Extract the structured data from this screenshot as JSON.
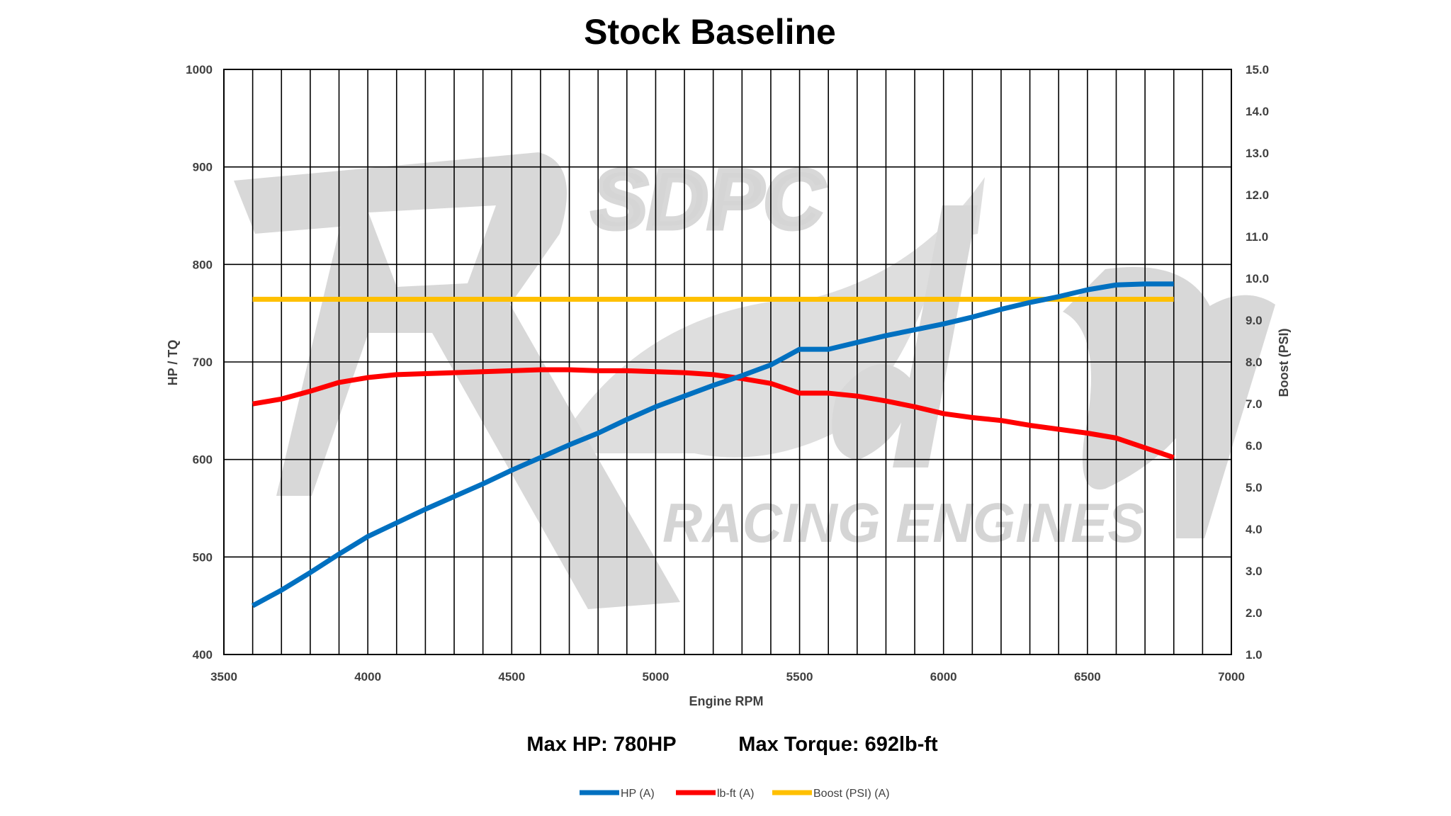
{
  "chart_data": {
    "type": "line",
    "title": "Stock Baseline",
    "xlabel": "Engine RPM",
    "ylabel": "HP / TQ",
    "y2label": "Boost (PSI)",
    "xlim": [
      3500,
      7000
    ],
    "ylim": [
      400,
      1000
    ],
    "y2lim": [
      1.0,
      15.0
    ],
    "x_ticks": [
      3500,
      4000,
      4500,
      5000,
      5500,
      6000,
      6500,
      7000
    ],
    "x_tick_labels": [
      "3500",
      "4000",
      "4500",
      "5000",
      "5500",
      "6000",
      "6500",
      "7000"
    ],
    "y_ticks": [
      400,
      500,
      600,
      700,
      800,
      900,
      1000
    ],
    "y_tick_labels": [
      "400",
      "500",
      "600",
      "700",
      "800",
      "900",
      "1000"
    ],
    "y2_ticks": [
      1.0,
      2.0,
      3.0,
      4.0,
      5.0,
      6.0,
      7.0,
      8.0,
      9.0,
      10.0,
      11.0,
      12.0,
      13.0,
      14.0,
      15.0
    ],
    "y2_tick_labels": [
      "1.0",
      "2.0",
      "3.0",
      "4.0",
      "5.0",
      "6.0",
      "7.0",
      "8.0",
      "9.0",
      "10.0",
      "11.0",
      "12.0",
      "13.0",
      "14.0",
      "15.0"
    ],
    "grid": true,
    "x_minor_step": 100,
    "series": [
      {
        "name": "HP (A)",
        "axis": "left",
        "color": "#0070c0",
        "x": [
          3600,
          3700,
          3800,
          3900,
          4000,
          4100,
          4200,
          4300,
          4400,
          4500,
          4600,
          4700,
          4800,
          4900,
          5000,
          5100,
          5200,
          5300,
          5400,
          5500,
          5600,
          5700,
          5800,
          5900,
          6000,
          6100,
          6200,
          6300,
          6400,
          6500,
          6600,
          6700,
          6800
        ],
        "values": [
          450,
          466,
          484,
          503,
          521,
          535,
          549,
          562,
          575,
          589,
          602,
          615,
          627,
          641,
          654,
          665,
          676,
          686,
          697,
          713,
          713,
          720,
          727,
          733,
          739,
          746,
          754,
          761,
          767,
          774,
          779,
          780,
          780
        ]
      },
      {
        "name": "lb-ft (A)",
        "axis": "left",
        "color": "#ff0000",
        "x": [
          3600,
          3700,
          3800,
          3900,
          4000,
          4100,
          4200,
          4300,
          4400,
          4500,
          4600,
          4700,
          4800,
          4900,
          5000,
          5100,
          5200,
          5300,
          5400,
          5500,
          5600,
          5700,
          5800,
          5900,
          6000,
          6100,
          6200,
          6300,
          6400,
          6500,
          6600,
          6700,
          6800
        ],
        "values": [
          657,
          662,
          670,
          679,
          684,
          687,
          688,
          689,
          690,
          691,
          692,
          692,
          691,
          691,
          690,
          689,
          687,
          683,
          678,
          668,
          668,
          665,
          660,
          654,
          647,
          643,
          640,
          635,
          631,
          627,
          622,
          612,
          602
        ]
      },
      {
        "name": "Boost (PSI) (A)",
        "axis": "right",
        "color": "#ffc000",
        "x": [
          3600,
          6800
        ],
        "values": [
          9.5,
          9.5
        ]
      }
    ],
    "legend_position": "bottom"
  },
  "summary": {
    "max_hp": "Max HP: 780HP",
    "max_torque": "Max Torque: 692lb-ft"
  },
  "watermark": {
    "brand": "SDPC",
    "script": "Raceshop",
    "subtitle": "RACING ENGINES"
  }
}
